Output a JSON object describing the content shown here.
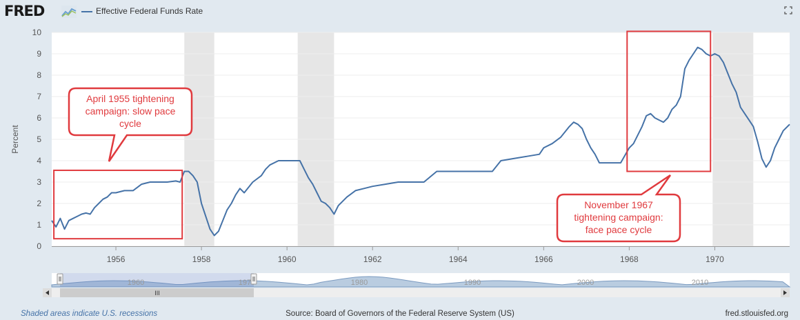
{
  "header": {
    "logo_text": "FRED",
    "legend_label": "Effective Federal Funds Rate",
    "series_color": "#4572a7"
  },
  "footer": {
    "recessions_note": "Shaded areas indicate U.S. recessions",
    "source": "Source: Board of Governors of the Federal Reserve System (US)",
    "site": "fred.stlouisfed.org"
  },
  "navigator": {
    "tick_labels": [
      "1960",
      "1970",
      "1980",
      "1990",
      "2000",
      "2010"
    ],
    "scroll_grip": "III"
  },
  "chart_data": {
    "type": "line",
    "ylabel": "Percent",
    "xlim": [
      1954.5,
      1971.75
    ],
    "ylim": [
      0,
      10
    ],
    "y_ticks": [
      0,
      1,
      2,
      3,
      4,
      5,
      6,
      7,
      8,
      9,
      10
    ],
    "x_ticks": [
      1956,
      1958,
      1960,
      1962,
      1964,
      1966,
      1968,
      1970
    ],
    "recessions": [
      [
        1957.6,
        1958.3
      ],
      [
        1960.25,
        1961.1
      ],
      [
        1969.95,
        1970.9
      ]
    ],
    "series": [
      {
        "name": "Effective Federal Funds Rate",
        "x": [
          1954.5,
          1954.6,
          1954.7,
          1954.8,
          1954.9,
          1955.0,
          1955.1,
          1955.2,
          1955.3,
          1955.4,
          1955.5,
          1955.6,
          1955.7,
          1955.8,
          1955.9,
          1956.0,
          1956.2,
          1956.4,
          1956.6,
          1956.8,
          1957.0,
          1957.2,
          1957.4,
          1957.5,
          1957.6,
          1957.7,
          1957.8,
          1957.9,
          1958.0,
          1958.1,
          1958.2,
          1958.3,
          1958.4,
          1958.5,
          1958.6,
          1958.7,
          1958.8,
          1958.9,
          1959.0,
          1959.2,
          1959.4,
          1959.5,
          1959.6,
          1959.8,
          1960.0,
          1960.2,
          1960.3,
          1960.4,
          1960.5,
          1960.6,
          1960.7,
          1960.8,
          1960.9,
          1961.0,
          1961.1,
          1961.2,
          1961.4,
          1961.6,
          1961.8,
          1962.0,
          1962.3,
          1962.6,
          1962.9,
          1963.2,
          1963.5,
          1963.7,
          1963.8,
          1964.0,
          1964.4,
          1964.8,
          1965.0,
          1965.3,
          1965.6,
          1965.9,
          1966.0,
          1966.2,
          1966.4,
          1966.6,
          1966.7,
          1966.8,
          1966.9,
          1967.0,
          1967.1,
          1967.2,
          1967.3,
          1967.4,
          1967.5,
          1967.6,
          1967.8,
          1968.0,
          1968.1,
          1968.2,
          1968.3,
          1968.4,
          1968.5,
          1968.6,
          1968.7,
          1968.8,
          1968.9,
          1969.0,
          1969.1,
          1969.2,
          1969.3,
          1969.4,
          1969.5,
          1969.6,
          1969.7,
          1969.8,
          1969.9,
          1970.0,
          1970.1,
          1970.2,
          1970.3,
          1970.4,
          1970.5,
          1970.6,
          1970.7,
          1970.8,
          1970.9,
          1971.0,
          1971.1,
          1971.2,
          1971.3,
          1971.4,
          1971.5,
          1971.6,
          1971.75
        ],
        "y": [
          1.2,
          0.9,
          1.3,
          0.8,
          1.2,
          1.3,
          1.4,
          1.5,
          1.55,
          1.5,
          1.8,
          2.0,
          2.2,
          2.3,
          2.5,
          2.5,
          2.6,
          2.6,
          2.9,
          3.0,
          3.0,
          3.0,
          3.05,
          3.0,
          3.5,
          3.5,
          3.3,
          3.0,
          2.0,
          1.4,
          0.8,
          0.5,
          0.7,
          1.2,
          1.7,
          2.0,
          2.4,
          2.7,
          2.5,
          3.0,
          3.3,
          3.6,
          3.8,
          4.0,
          4.0,
          4.0,
          4.0,
          3.6,
          3.2,
          2.9,
          2.5,
          2.1,
          2.0,
          1.8,
          1.5,
          1.9,
          2.3,
          2.6,
          2.7,
          2.8,
          2.9,
          3.0,
          3.0,
          3.0,
          3.5,
          3.5,
          3.5,
          3.5,
          3.5,
          3.5,
          4.0,
          4.1,
          4.2,
          4.3,
          4.6,
          4.8,
          5.1,
          5.6,
          5.8,
          5.7,
          5.5,
          5.0,
          4.6,
          4.3,
          3.9,
          3.9,
          3.9,
          3.9,
          3.9,
          4.6,
          4.8,
          5.2,
          5.6,
          6.1,
          6.2,
          6.0,
          5.9,
          5.8,
          6.0,
          6.4,
          6.6,
          7.0,
          8.3,
          8.7,
          9.0,
          9.3,
          9.2,
          9.0,
          8.9,
          9.0,
          8.9,
          8.6,
          8.1,
          7.6,
          7.2,
          6.5,
          6.2,
          5.9,
          5.6,
          4.9,
          4.1,
          3.7,
          4.0,
          4.6,
          5.0,
          5.4,
          5.7
        ]
      }
    ],
    "annotations": [
      {
        "text": "April 1955 tightening campaign: slow pace cycle",
        "line1": "April 1955 tightening",
        "line2": "campaign: slow pace",
        "line3": "cycle"
      },
      {
        "text": "November 1967 tightening campaign: face pace cycle",
        "line1": "November 1967",
        "line2": "tightening campaign:",
        "line3": "face pace cycle"
      }
    ]
  }
}
